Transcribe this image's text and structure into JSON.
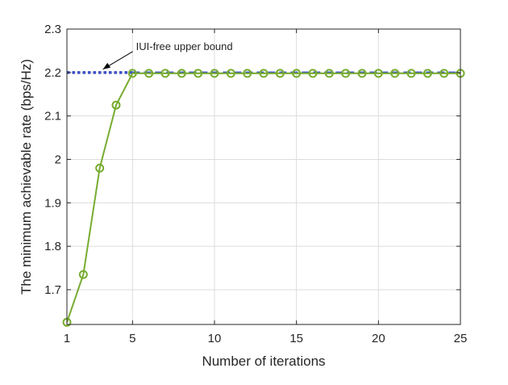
{
  "chart_data": {
    "type": "line",
    "xlabel": "Number of iterations",
    "ylabel": "The minimum achievable rate (bps/Hz)",
    "xlim": [
      1,
      25
    ],
    "ylim": [
      1.62,
      2.3
    ],
    "xticks": [
      1,
      5,
      10,
      15,
      20,
      25
    ],
    "yticks": [
      1.7,
      1.8,
      1.9,
      2.0,
      2.1,
      2.2,
      2.3
    ],
    "ytick_labels": [
      "1.7",
      "1.8",
      "1.9",
      "2",
      "2.1",
      "2.2",
      "2.3"
    ],
    "grid": true,
    "series": [
      {
        "style": "dotted",
        "color": "#3a4fc7",
        "x": [
          1,
          5
        ],
        "values": [
          2.2,
          2.2
        ]
      },
      {
        "style": "dashed",
        "color": "#3a4fc7",
        "x": [
          5,
          25
        ],
        "values": [
          2.2,
          2.2
        ]
      },
      {
        "style": "solid-marker-circle",
        "color": "#77ac30",
        "x": [
          1,
          2,
          3,
          4,
          5,
          6,
          7,
          8,
          9,
          10,
          11,
          12,
          13,
          14,
          15,
          16,
          17,
          18,
          19,
          20,
          21,
          22,
          23,
          24,
          25
        ],
        "values": [
          1.625,
          1.735,
          1.98,
          2.125,
          2.198,
          2.198,
          2.198,
          2.198,
          2.198,
          2.198,
          2.198,
          2.198,
          2.198,
          2.198,
          2.198,
          2.198,
          2.198,
          2.198,
          2.198,
          2.198,
          2.198,
          2.198,
          2.198,
          2.198,
          2.198
        ]
      }
    ],
    "annotations": [
      {
        "text": "IUI-free upper bound",
        "x": 3.0,
        "y": 2.2
      }
    ]
  }
}
